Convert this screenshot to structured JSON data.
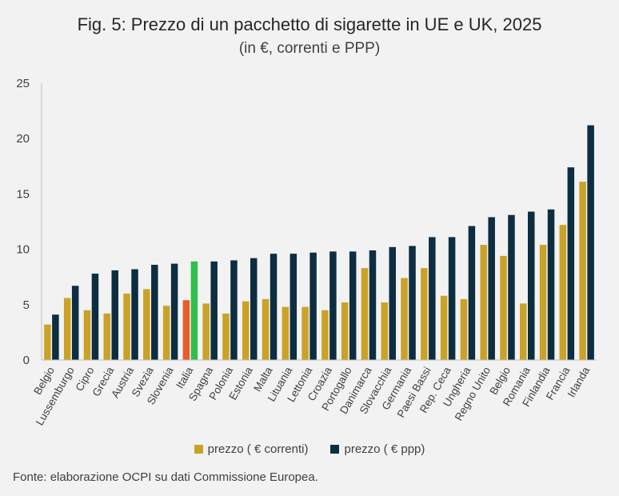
{
  "chart_data": {
    "type": "bar",
    "title": "Fig. 5: Prezzo di un pacchetto di sigarette in UE e UK, 2025",
    "subtitle": "(in €, correnti e PPP)",
    "categories": [
      "Belgio",
      "Lussemburgo",
      "Cipro",
      "Grecia",
      "Austria",
      "Svezia",
      "Slovenia",
      "Italia",
      "Spagna",
      "Polonia",
      "Estonia",
      "Malta",
      "Lituania",
      "Lettonia",
      "Croazia",
      "Portogallo",
      "Danimarca",
      "Slovacchia",
      "Germania",
      "Paesi Bassi",
      "Rep. Ceca",
      "Ungheria",
      "Regno Unito",
      "Belgio",
      "Romania",
      "Finlandia",
      "Francia",
      "Irlanda"
    ],
    "series": [
      {
        "name": "prezzo ( € correnti)",
        "color": "#c9a227",
        "values": [
          3.2,
          5.6,
          4.5,
          4.2,
          6.0,
          6.4,
          4.9,
          5.4,
          5.1,
          4.2,
          5.3,
          5.5,
          4.8,
          4.8,
          4.5,
          5.2,
          8.3,
          5.2,
          7.4,
          8.3,
          5.8,
          5.5,
          10.4,
          9.4,
          5.1,
          10.4,
          12.2,
          16.1
        ]
      },
      {
        "name": "prezzo ( € ppp)",
        "color": "#0d2d40",
        "values": [
          4.1,
          6.7,
          7.8,
          8.1,
          8.2,
          8.6,
          8.7,
          8.9,
          8.9,
          9.0,
          9.2,
          9.6,
          9.6,
          9.7,
          9.8,
          9.8,
          9.9,
          10.2,
          10.3,
          11.1,
          11.1,
          12.1,
          12.9,
          13.1,
          13.4,
          13.6,
          17.4,
          21.2
        ]
      }
    ],
    "highlight": {
      "category_index": 7,
      "colors": [
        "#e85b2a",
        "#2fbf4a"
      ]
    },
    "ylim": [
      0,
      25
    ],
    "yticks": [
      0,
      5,
      10,
      15,
      20,
      25
    ],
    "grid": false,
    "legend_position": "bottom"
  },
  "source": "Fonte: elaborazione OCPI su dati Commissione Europea."
}
